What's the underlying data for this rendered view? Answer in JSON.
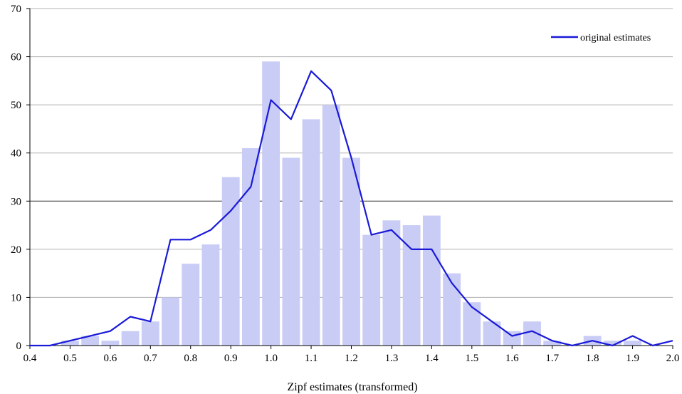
{
  "chart_data": {
    "type": "bar",
    "title": "",
    "xlabel": "Zipf estimates (transformed)",
    "ylabel": "",
    "xlim": [
      0.4,
      2.0
    ],
    "ylim": [
      0,
      70
    ],
    "x_ticks": [
      "0.4",
      "0.5",
      "0.6",
      "0.7",
      "0.8",
      "0.9",
      "1.0",
      "1.1",
      "1.2",
      "1.3",
      "1.4",
      "1.5",
      "1.6",
      "1.7",
      "1.8",
      "1.9",
      "2.0"
    ],
    "y_ticks": [
      "0",
      "10",
      "20",
      "30",
      "40",
      "50",
      "60",
      "70"
    ],
    "grid": "horizontal",
    "legend": {
      "position": "top-right",
      "entries": [
        "original estimates"
      ]
    },
    "colors": {
      "bars": "#c9ccf5",
      "line": "#1a1ad8",
      "grid": "#b0b0b0",
      "grid_major": "#333333"
    },
    "bars": {
      "x": [
        0.45,
        0.5,
        0.55,
        0.6,
        0.65,
        0.7,
        0.75,
        0.8,
        0.85,
        0.9,
        0.95,
        1.0,
        1.05,
        1.1,
        1.15,
        1.2,
        1.25,
        1.3,
        1.35,
        1.4,
        1.45,
        1.5,
        1.55,
        1.6,
        1.65,
        1.7,
        1.75,
        1.8,
        1.85,
        1.9,
        1.95,
        2.0
      ],
      "values": [
        0,
        1,
        2,
        1,
        3,
        5,
        10,
        17,
        21,
        35,
        41,
        59,
        39,
        47,
        50,
        39,
        23,
        26,
        25,
        27,
        15,
        9,
        5,
        3,
        5,
        1,
        0,
        2,
        1,
        1,
        0,
        0
      ]
    },
    "series": [
      {
        "name": "original estimates",
        "type": "line",
        "x": [
          0.4,
          0.45,
          0.5,
          0.55,
          0.6,
          0.65,
          0.7,
          0.75,
          0.8,
          0.85,
          0.9,
          0.95,
          1.0,
          1.05,
          1.1,
          1.15,
          1.2,
          1.25,
          1.3,
          1.35,
          1.4,
          1.45,
          1.5,
          1.55,
          1.6,
          1.65,
          1.7,
          1.75,
          1.8,
          1.85,
          1.9,
          1.95,
          2.0
        ],
        "values": [
          0,
          0,
          1,
          2,
          3,
          6,
          5,
          22,
          22,
          24,
          28,
          33,
          51,
          47,
          57,
          53,
          39,
          23,
          24,
          20,
          20,
          13,
          8,
          5,
          2,
          3,
          1,
          0,
          1,
          0,
          2,
          0,
          1
        ]
      }
    ]
  }
}
